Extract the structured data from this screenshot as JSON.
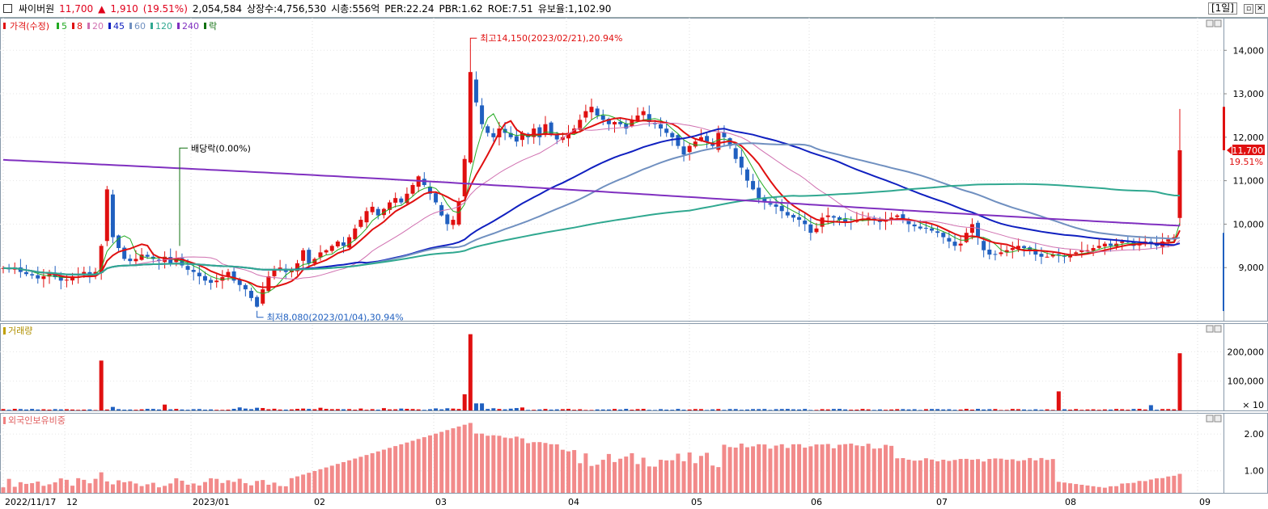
{
  "header": {
    "name": "싸이버원",
    "price": "11,700",
    "arrow": "▲",
    "change": "1,910",
    "change_pct": "(19.51%)",
    "volume": "2,054,584",
    "shares": "상장수:4,756,530",
    "mcap": "시총:556억",
    "per": "PER:22.24",
    "pbr": "PBR:1.62",
    "roe": "ROE:7.51",
    "reserve": "유보율:1,102.90",
    "period": "[1일]"
  },
  "price_legend": {
    "price_label": "가격(수정)",
    "ma": [
      "5",
      "8",
      "20",
      "45",
      "60",
      "120",
      "240"
    ],
    "ex_div": "락",
    "colors": {
      "5": "#22aa22",
      "8": "#e01010",
      "20": "#d070b0",
      "45": "#1020c0",
      "60": "#7090c0",
      "120": "#30a890",
      "240": "#8030c0"
    }
  },
  "price_axis": {
    "ticks": [
      "14,000",
      "13,000",
      "12,000",
      "11,000",
      "10,000",
      "9,000"
    ],
    "current": "11,700",
    "current_pct": "19.51%"
  },
  "annotations": {
    "high": "최고14,150(2023/02/21),20.94%",
    "low": "최저8,080(2023/01/04),30.94%",
    "dividend": "배당락(0.00%)"
  },
  "volume_pane": {
    "title": "거래량",
    "ticks": [
      "200,000",
      "100,000"
    ],
    "unit": "× 10"
  },
  "foreign_pane": {
    "title": "외국인보유비중",
    "ticks": [
      "2.00",
      "1.00"
    ]
  },
  "xaxis": {
    "labels": [
      "2022/11/17",
      "12",
      "2023/01",
      "02",
      "03",
      "04",
      "05",
      "06",
      "07",
      "08",
      "09"
    ]
  },
  "chart_data": {
    "type": "candlestick",
    "y_range_price": [
      8000,
      14600
    ],
    "current_price": 11700,
    "high": {
      "value": 14150,
      "date": "2023/02/21"
    },
    "low": {
      "value": 8080,
      "date": "2023/01/04"
    },
    "close_series": [
      8990,
      8970,
      9000,
      8900,
      8850,
      8820,
      8750,
      8800,
      8850,
      8780,
      8700,
      8720,
      8800,
      8850,
      8900,
      8780,
      8900,
      9500,
      10800,
      9700,
      9450,
      9200,
      9150,
      9200,
      9300,
      9250,
      9200,
      9150,
      9250,
      9100,
      9200,
      9050,
      8950,
      8900,
      8800,
      8700,
      8650,
      8700,
      8780,
      8900,
      8700,
      8600,
      8500,
      8300,
      8100,
      8500,
      8800,
      8950,
      9000,
      8900,
      8950,
      9100,
      9400,
      9100,
      9200,
      9350,
      9400,
      9500,
      9600,
      9500,
      9700,
      9900,
      10100,
      10300,
      10400,
      10200,
      10350,
      10500,
      10600,
      10500,
      10700,
      10900,
      11100,
      10900,
      10700,
      10500,
      10200,
      10000,
      10100,
      10500,
      11500,
      13500,
      12800,
      12300,
      12100,
      12000,
      12200,
      12100,
      12000,
      11900,
      12100,
      12000,
      12200,
      12000,
      12300,
      12050,
      11950,
      12000,
      12100,
      12200,
      12400,
      12600,
      12700,
      12500,
      12400,
      12300,
      12350,
      12300,
      12200,
      12400,
      12500,
      12600,
      12350,
      12300,
      12200,
      12100,
      12000,
      11800,
      11600,
      11800,
      11900,
      12000,
      11900,
      11800,
      12100,
      12000,
      11800,
      11500,
      11300,
      11000,
      10800,
      10600,
      10500,
      10450,
      10400,
      10300,
      10200,
      10150,
      10100,
      10000,
      9800,
      9900,
      10150,
      10200,
      10150,
      10100,
      10050,
      10050,
      10100,
      10100,
      10150,
      10100,
      10050,
      10100,
      10150,
      10200,
      10100,
      10000,
      9950,
      9900,
      9900,
      9850,
      9800,
      9700,
      9600,
      9500,
      9550,
      9800,
      10000,
      9700,
      9400,
      9300,
      9300,
      9350,
      9400,
      9450,
      9500,
      9450,
      9400,
      9300,
      9250,
      9250,
      9300,
      9300,
      9250,
      9300,
      9350,
      9400,
      9400,
      9450,
      9500,
      9550,
      9500,
      9550,
      9600,
      9600,
      9500,
      9550,
      9600,
      9550,
      9500,
      9600,
      9650,
      9700,
      11700
    ],
    "volume_max": 270000,
    "volume_spikes": [
      {
        "date": "2022/12",
        "value": 170000
      },
      {
        "date": "2023/02/21",
        "value": 260000
      },
      {
        "date": "2023/07",
        "value": 65000
      },
      {
        "date": "2023/08",
        "value": 195000
      }
    ],
    "foreign_ratio_range": [
      0.4,
      2.4
    ]
  }
}
